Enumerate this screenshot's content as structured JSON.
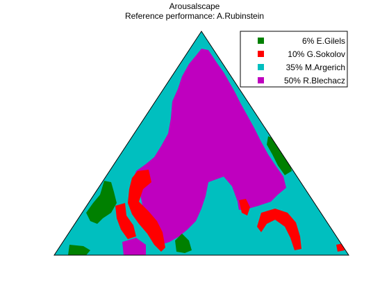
{
  "chart_data": {
    "type": "heatmap",
    "title": "Arousalscape",
    "subtitle": "Reference performance: A.Rubinstein",
    "xlabel": "",
    "ylabel": "",
    "grid": false,
    "legend_position": "top-right",
    "legend": [
      {
        "label": "6% E.Gilels",
        "color": "#008000"
      },
      {
        "label": "10% G.Sokolov",
        "color": "#ff0000"
      },
      {
        "label": "35% M.Argerich",
        "color": "#00bfbf"
      },
      {
        "label": "50% R.Blechacz",
        "color": "#bf00bf"
      }
    ],
    "series": [
      {
        "name": "E.Gilels",
        "share_percent": 6,
        "color": "#008000"
      },
      {
        "name": "G.Sokolov",
        "share_percent": 10,
        "color": "#ff0000"
      },
      {
        "name": "M.Argerich",
        "share_percent": 35,
        "color": "#00bfbf"
      },
      {
        "name": "R.Blechacz",
        "share_percent": 50,
        "color": "#bf00bf"
      }
    ],
    "background_color": "#00bfbf"
  }
}
